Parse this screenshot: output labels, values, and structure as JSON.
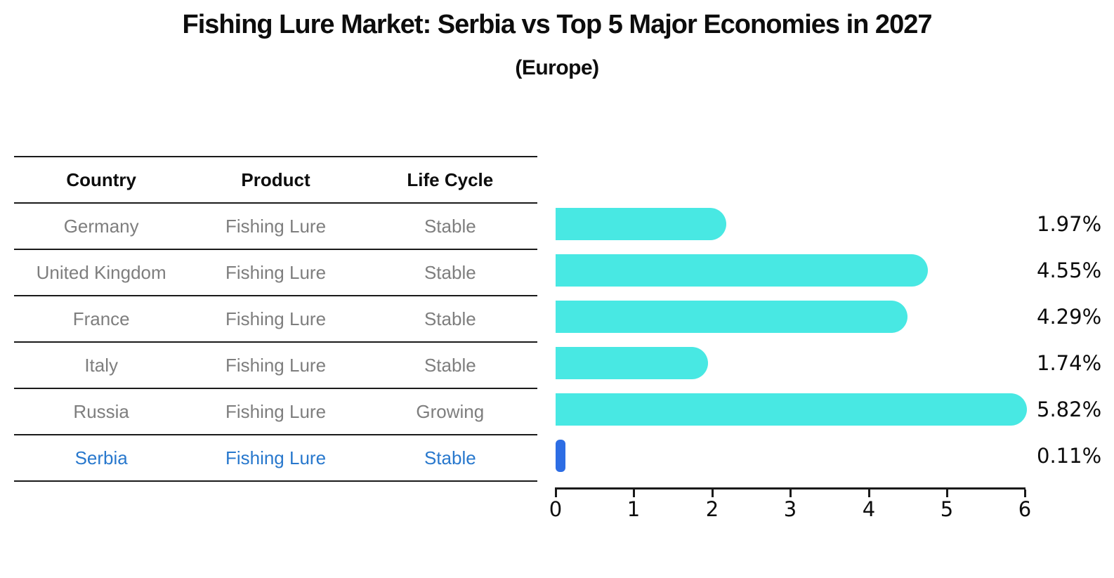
{
  "title": "Fishing Lure Market: Serbia vs Top 5 Major Economies in 2027",
  "subtitle": "(Europe)",
  "table": {
    "headers": [
      "Country",
      "Product",
      "Life Cycle"
    ],
    "rows": [
      {
        "country": "Germany",
        "product": "Fishing Lure",
        "life_cycle": "Stable",
        "highlight": false
      },
      {
        "country": "United Kingdom",
        "product": "Fishing Lure",
        "life_cycle": "Stable",
        "highlight": false
      },
      {
        "country": "France",
        "product": "Fishing Lure",
        "life_cycle": "Stable",
        "highlight": false
      },
      {
        "country": "Italy",
        "product": "Fishing Lure",
        "life_cycle": "Stable",
        "highlight": false
      },
      {
        "country": "Russia",
        "product": "Fishing Lure",
        "life_cycle": "Growing",
        "highlight": false
      },
      {
        "country": "Serbia",
        "product": "Fishing Lure",
        "life_cycle": "Stable",
        "highlight": true
      }
    ]
  },
  "chart_data": {
    "type": "bar",
    "orientation": "horizontal",
    "title": "Fishing Lure Market: Serbia vs Top 5 Major Economies in 2027",
    "subtitle": "(Europe)",
    "categories": [
      "Germany",
      "United Kingdom",
      "France",
      "Italy",
      "Russia",
      "Serbia"
    ],
    "values": [
      1.97,
      4.55,
      4.29,
      1.74,
      5.82,
      0.11
    ],
    "value_labels": [
      "1.97%",
      "4.55%",
      "4.29%",
      "1.74%",
      "5.82%",
      "0.11%"
    ],
    "unit": "%",
    "xlim": [
      0,
      6
    ],
    "xticks": [
      0,
      1,
      2,
      3,
      4,
      5,
      6
    ],
    "xtick_labels": [
      "0",
      "1",
      "2",
      "3",
      "4",
      "5",
      "6"
    ],
    "grid": false,
    "legend": false,
    "bar_color": "#48e8e3",
    "highlight_color": "#2d6de4",
    "highlight_text_color": "#2878cd",
    "highlight_index": 5
  }
}
